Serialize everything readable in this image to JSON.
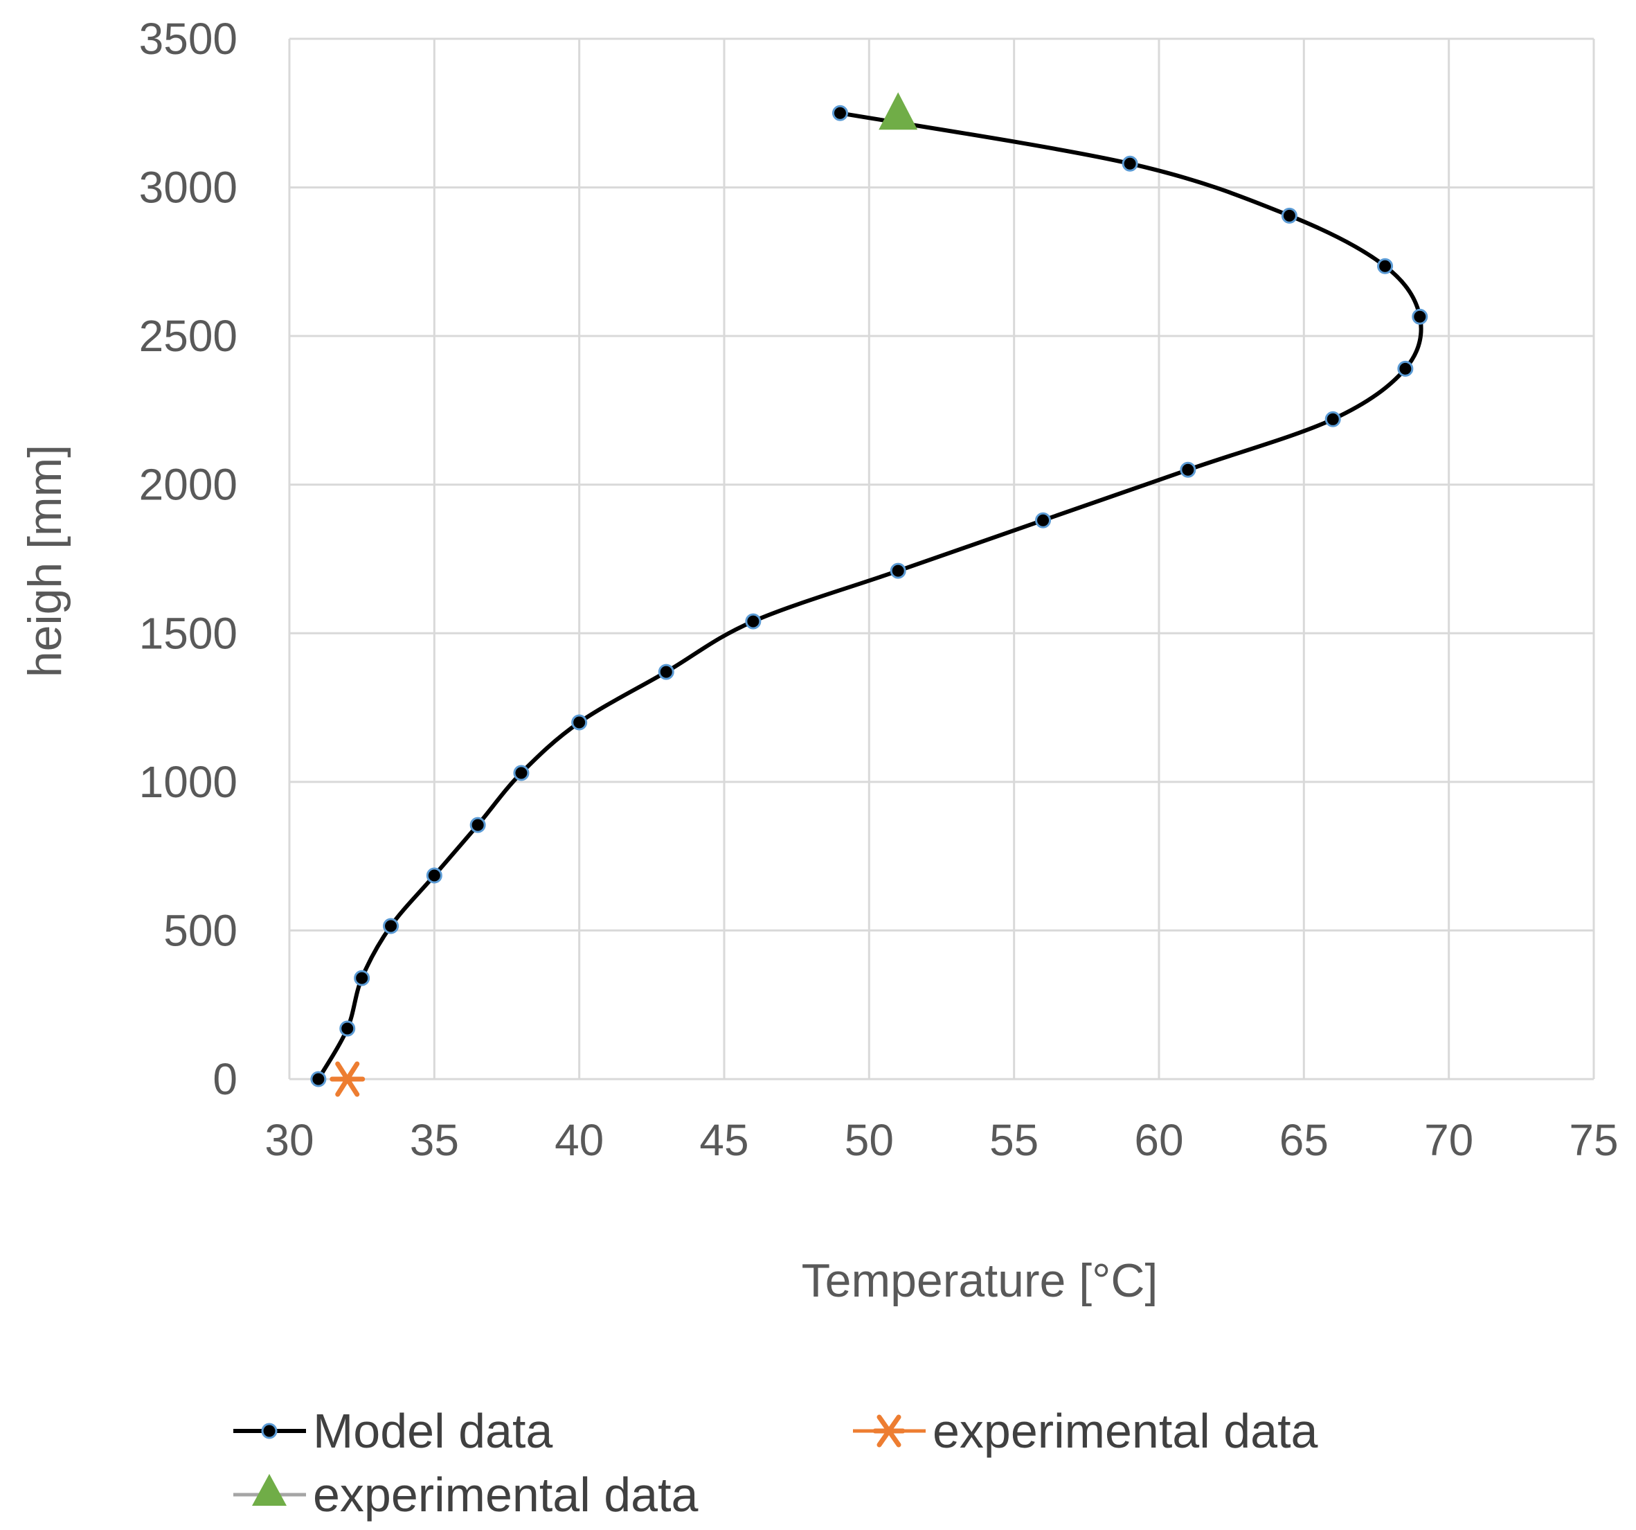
{
  "chart_data": {
    "type": "scatter",
    "xlabel": "Temperature [°C]",
    "ylabel": "heigh [mm]",
    "xlim": [
      30,
      75
    ],
    "ylim": [
      0,
      3500
    ],
    "xticks": [
      30,
      35,
      40,
      45,
      50,
      55,
      60,
      65,
      70,
      75
    ],
    "yticks": [
      0,
      500,
      1000,
      1500,
      2000,
      2500,
      3000,
      3500
    ],
    "grid": true,
    "legend_position": "bottom",
    "series": [
      {
        "name": "Model data",
        "style": "smooth-line-with-dots",
        "color": "#000000",
        "marker_edge_color": "#5b9bd5",
        "x": [
          31,
          32,
          32.5,
          33.5,
          35,
          36.5,
          38,
          40,
          43,
          46,
          51,
          56,
          61,
          66,
          68.5,
          69,
          67.8,
          64.5,
          59,
          49
        ],
        "y": [
          0,
          170,
          340,
          515,
          685,
          855,
          1030,
          1200,
          1370,
          1540,
          1710,
          1880,
          2050,
          2220,
          2390,
          2565,
          2735,
          2905,
          3080,
          3250
        ]
      },
      {
        "name": "experimental data",
        "style": "marker-asterisk",
        "color": "#ed7d31",
        "x": [
          32
        ],
        "y": [
          0
        ]
      },
      {
        "name": "experimental data",
        "style": "marker-triangle",
        "color": "#70ad47",
        "x": [
          51
        ],
        "y": [
          3250
        ]
      }
    ]
  }
}
